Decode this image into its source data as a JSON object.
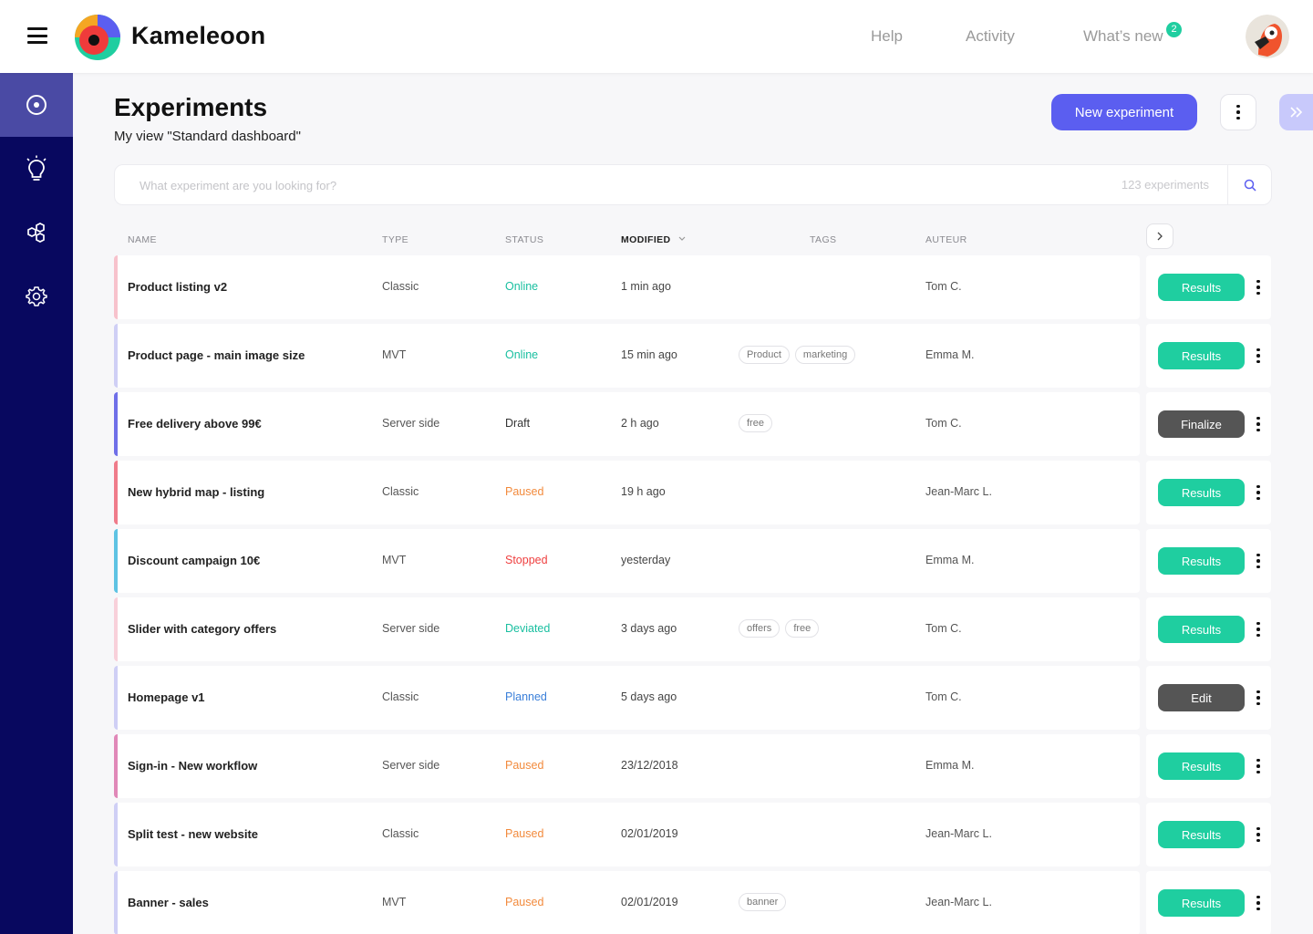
{
  "header": {
    "brand": "Kameleoon",
    "nav": [
      {
        "label": "Help"
      },
      {
        "label": "Activity"
      },
      {
        "label": "What’s new"
      }
    ],
    "whats_new_badge": "2"
  },
  "sidebar": {
    "items": [
      {
        "icon": "target-icon",
        "active": true
      },
      {
        "icon": "lightbulb-icon",
        "active": false
      },
      {
        "icon": "hexagons-icon",
        "active": false
      },
      {
        "icon": "gear-icon",
        "active": false
      }
    ]
  },
  "page": {
    "title": "Experiments",
    "subtitle": "My view \"Standard dashboard\"",
    "new_button": "New experiment"
  },
  "search": {
    "placeholder": "What experiment are you looking for?",
    "count": "123 experiments"
  },
  "table": {
    "columns": [
      "NAME",
      "TYPE",
      "STATUS",
      "MODIFIED",
      "TAGS",
      "AUTEUR"
    ],
    "sorted_by": "MODIFIED",
    "rows": [
      {
        "name": "Product listing v2",
        "type": "Classic",
        "status": "Online",
        "modified": "1 min ago",
        "tags": [],
        "author": "Tom C.",
        "action": "Results"
      },
      {
        "name": "Product page - main image size",
        "type": "MVT",
        "status": "Online",
        "modified": "15 min ago",
        "tags": [
          "Product",
          "marketing"
        ],
        "author": "Emma M.",
        "action": "Results"
      },
      {
        "name": "Free delivery above 99€",
        "type": "Server side",
        "status": "Draft",
        "modified": "2 h ago",
        "tags": [
          "free"
        ],
        "author": "Tom C.",
        "action": "Finalize"
      },
      {
        "name": "New hybrid map - listing",
        "type": "Classic",
        "status": "Paused",
        "modified": "19 h ago",
        "tags": [],
        "author": "Jean-Marc L.",
        "action": "Results"
      },
      {
        "name": "Discount campaign 10€",
        "type": "MVT",
        "status": "Stopped",
        "modified": "yesterday",
        "tags": [],
        "author": "Emma M.",
        "action": "Results"
      },
      {
        "name": "Slider with category offers",
        "type": "Server side",
        "status": "Deviated",
        "modified": "3 days ago",
        "tags": [
          "offers",
          "free"
        ],
        "author": "Tom C.",
        "action": "Results"
      },
      {
        "name": "Homepage v1",
        "type": "Classic",
        "status": "Planned",
        "modified": "5 days ago",
        "tags": [],
        "author": "Tom C.",
        "action": "Edit"
      },
      {
        "name": "Sign-in - New workflow",
        "type": "Server side",
        "status": "Paused",
        "modified": "23/12/2018",
        "tags": [],
        "author": "Emma M.",
        "action": "Results"
      },
      {
        "name": "Split test - new website",
        "type": "Classic",
        "status": "Paused",
        "modified": "02/01/2019",
        "tags": [],
        "author": "Jean-Marc L.",
        "action": "Results"
      },
      {
        "name": "Banner - sales",
        "type": "MVT",
        "status": "Paused",
        "modified": "02/01/2019",
        "tags": [
          "banner"
        ],
        "author": "Jean-Marc L.",
        "action": "Results"
      }
    ]
  },
  "colors": {
    "sidebar_bg": "#08085f",
    "sidebar_active": "#4a4aa4",
    "primary": "#5b5ef0",
    "results_button": "#1fcea0",
    "dark_button": "#555555",
    "status": {
      "Online": "#19bfa0",
      "Draft": "#333333",
      "Paused": "#f28a3c",
      "Stopped": "#ef4040",
      "Deviated": "#19bfa0",
      "Planned": "#3a7fd9"
    },
    "row_accents": [
      "#f7c2cc",
      "#cfcff5",
      "#6f6fe8",
      "#ef7b8a",
      "#5ec3e3",
      "#f8d0da",
      "#cfcff5",
      "#e088b8",
      "#cfcff5",
      "#cfcff5"
    ]
  }
}
